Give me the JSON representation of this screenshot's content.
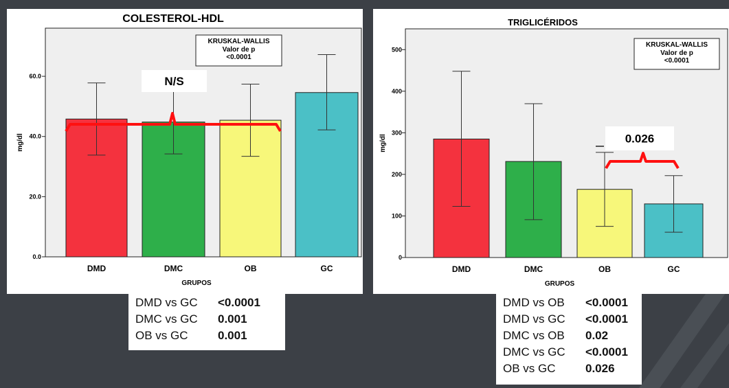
{
  "chart_data": [
    {
      "type": "bar",
      "title": "COLESTEROL-HDL",
      "xlabel": "GRUPOS",
      "ylabel": "mg/dl",
      "ylim": [
        0,
        76
      ],
      "yticks": [
        "0.0",
        "20.0",
        "40.0",
        "60.0"
      ],
      "ytick_values": [
        0,
        20,
        40,
        60
      ],
      "categories": [
        "DMD",
        "DMC",
        "OB",
        "GC"
      ],
      "values": [
        45.8,
        44.8,
        45.4,
        54.6
      ],
      "error_low": [
        33.8,
        34.2,
        33.4,
        42.2
      ],
      "error_high": [
        57.8,
        55.4,
        57.4,
        67.2
      ],
      "colors": [
        "#f4323e",
        "#2eaf4a",
        "#f7f77a",
        "#4bc0c6"
      ],
      "grid": false,
      "annotation_box": {
        "line1": "KRUSKAL-WALLIS",
        "line2": "Valor de p",
        "line3": "<0.0001"
      },
      "bracket_label": "N/S",
      "comparisons": [
        {
          "pair": "DMD vs GC",
          "p": "<0.0001"
        },
        {
          "pair": "DMC vs GC",
          "p": "0.001"
        },
        {
          "pair": "OB vs GC",
          "p": "0.001"
        }
      ]
    },
    {
      "type": "bar",
      "title": "TRIGLICÉRIDOS",
      "xlabel": "GRUPOS",
      "ylabel": "mg/dl",
      "ylim": [
        0,
        550
      ],
      "yticks": [
        "0",
        "100",
        "200",
        "300",
        "400",
        "500"
      ],
      "ytick_values": [
        0,
        100,
        200,
        300,
        400,
        500
      ],
      "categories": [
        "DMD",
        "DMC",
        "OB",
        "GC"
      ],
      "values": [
        285,
        231,
        164,
        129
      ],
      "error_low": [
        123,
        91,
        75,
        61
      ],
      "error_high": [
        448,
        370,
        253,
        197
      ],
      "colors": [
        "#f4323e",
        "#2eaf4a",
        "#f7f77a",
        "#4bc0c6"
      ],
      "grid": false,
      "annotation_box": {
        "line1": "KRUSKAL-WALLIS",
        "line2": "Valor de p",
        "line3": "<0.0001"
      },
      "bracket_label": "0.026",
      "comparisons": [
        {
          "pair": "DMD vs OB",
          "p": "<0.0001"
        },
        {
          "pair": "DMD vs GC",
          "p": "<0.0001"
        },
        {
          "pair": "DMC vs OB",
          "p": "0.02"
        },
        {
          "pair": "DMC vs GC",
          "p": "<0.0001"
        },
        {
          "pair": "OB vs GC",
          "p": "0.026"
        }
      ]
    }
  ]
}
